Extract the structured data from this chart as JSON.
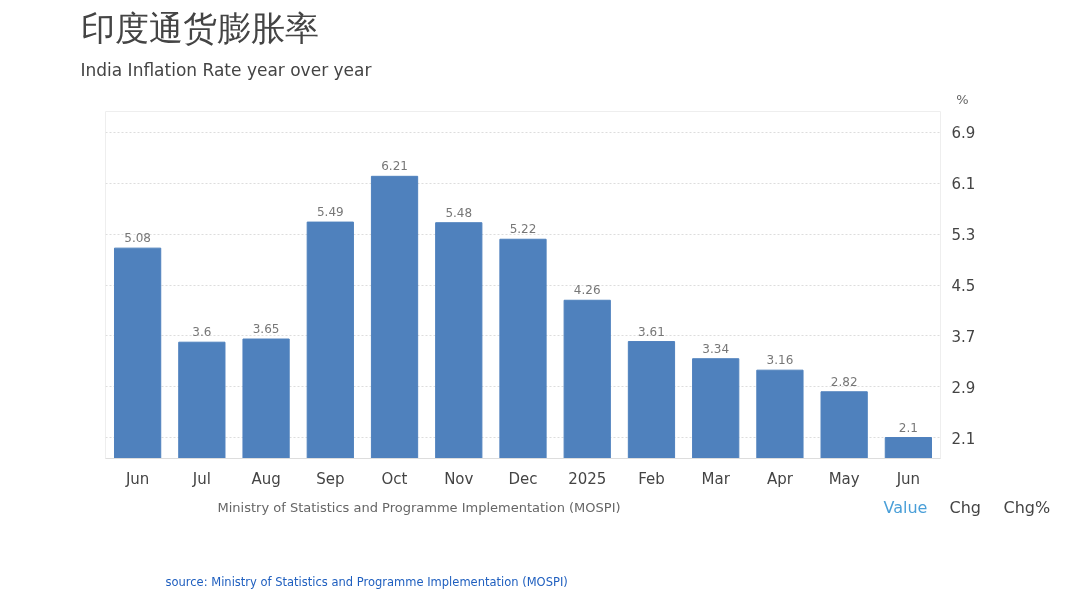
{
  "chart_data": {
    "type": "bar",
    "title": "印度通货膨胀率",
    "subtitle": "India Inflation Rate year over year",
    "ylabel": "%",
    "categories": [
      "Jun",
      "Jul",
      "Aug",
      "Sep",
      "Oct",
      "Nov",
      "Dec",
      "2025",
      "Feb",
      "Mar",
      "Apr",
      "May",
      "Jun"
    ],
    "values": [
      5.08,
      3.6,
      3.65,
      5.49,
      6.21,
      5.48,
      5.22,
      4.26,
      3.61,
      3.34,
      3.16,
      2.82,
      2.1
    ],
    "color": "#4f81bd",
    "data_labels": true,
    "ylim": [
      1.77,
      7.23
    ],
    "yticks": [
      2.1,
      2.9,
      3.7,
      4.5,
      5.3,
      6.1,
      6.9
    ],
    "grid": "y",
    "annotations": [
      "Ministry of Statistics and Programme Implementation (MOSPI)",
      "Value",
      "Chg",
      "Chg%",
      "source:  Ministry of Statistics and Programme Implementation (MOSPI)"
    ]
  }
}
